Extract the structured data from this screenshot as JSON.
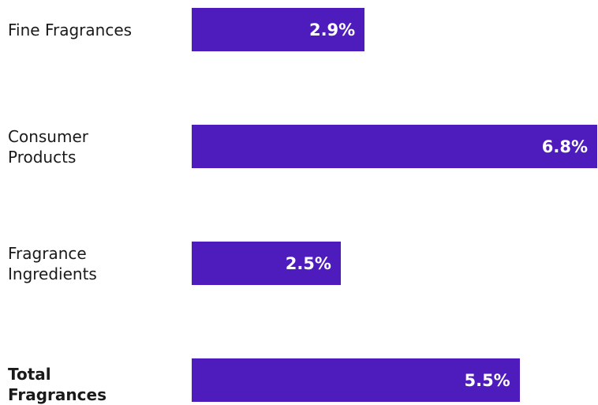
{
  "chart_data": {
    "type": "bar",
    "orientation": "horizontal",
    "categories": [
      "Fine Fragrances",
      "Consumer Products",
      "Fragrance Ingredients",
      "Total Fragrances"
    ],
    "values": [
      2.9,
      6.8,
      2.5,
      5.5
    ],
    "value_labels": [
      "2.9%",
      "6.8%",
      "2.5%",
      "5.5%"
    ],
    "color": "#4e1bbd"
  }
}
